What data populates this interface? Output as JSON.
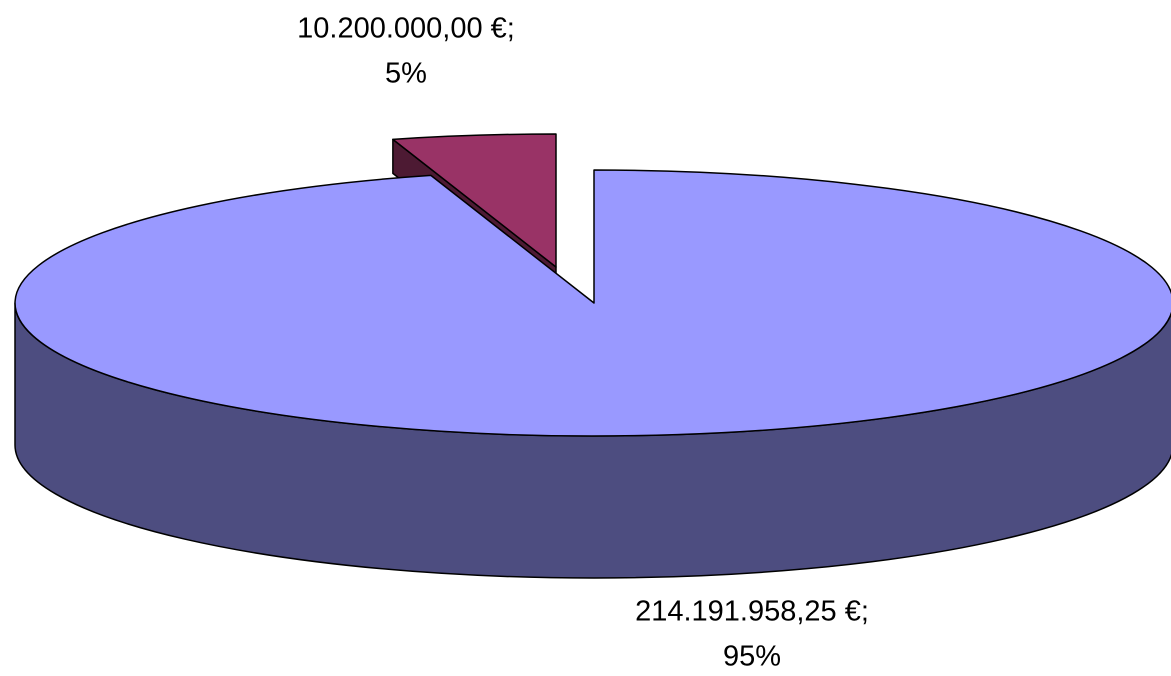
{
  "chart_data": {
    "type": "pie",
    "categories": [
      null,
      null
    ],
    "values": [
      10200000,
      214191958.25
    ],
    "value_labels": [
      "10.200.000,00 €;",
      "214.191.958,25 €;"
    ],
    "percentages": [
      5,
      95
    ],
    "percentage_labels": [
      "5%",
      "95%"
    ],
    "colors": [
      "#993366",
      "#9999ff"
    ],
    "side_colors": [
      "#4d1a33",
      "#4d4d80"
    ],
    "three_d": true,
    "exploded": [
      true,
      false
    ]
  }
}
